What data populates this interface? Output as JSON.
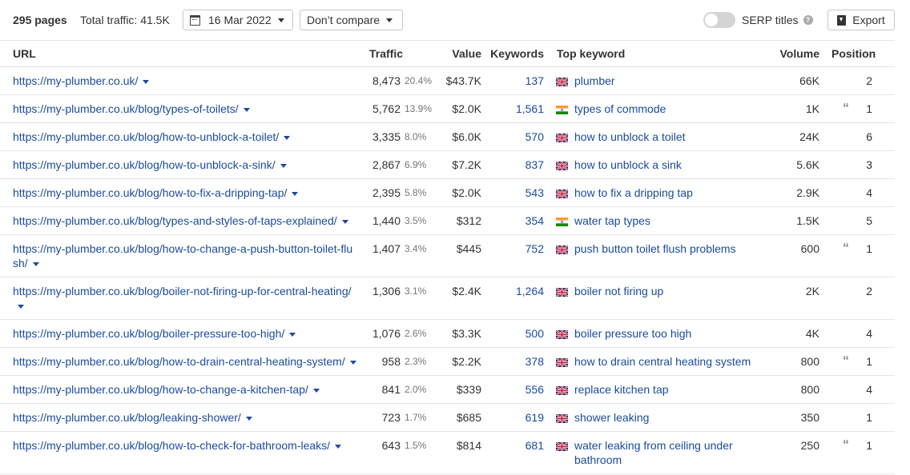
{
  "toolbar": {
    "pages": "295 pages",
    "total_traffic": "Total traffic: 41.5K",
    "date": "16 Mar 2022",
    "compare": "Don’t compare",
    "serp_titles": "SERP titles",
    "export": "Export"
  },
  "columns": {
    "url": "URL",
    "traffic": "Traffic",
    "value": "Value",
    "keywords": "Keywords",
    "top_keyword": "Top keyword",
    "volume": "Volume",
    "position": "Position"
  },
  "rows": [
    {
      "url_line1": "https://my-plumber.co.uk/",
      "url_line2": "",
      "traffic": "8,473",
      "pct": "20.4%",
      "value": "$43.7K",
      "keywords": "137",
      "flag": "uk",
      "kw_line1": "plumber",
      "kw_line2": "",
      "volume": "66K",
      "quote": false,
      "position": "2"
    },
    {
      "url_line1": "https://my-plumber.co.uk/blog/types-of-toilets/",
      "url_line2": "",
      "traffic": "5,762",
      "pct": "13.9%",
      "value": "$2.0K",
      "keywords": "1,561",
      "flag": "in",
      "kw_line1": "types of commode",
      "kw_line2": "",
      "volume": "1K",
      "quote": true,
      "position": "1"
    },
    {
      "url_line1": "https://my-plumber.co.uk/blog/how-to-unblock-a-toilet/",
      "url_line2": "",
      "traffic": "3,335",
      "pct": "8.0%",
      "value": "$6.0K",
      "keywords": "570",
      "flag": "uk",
      "kw_line1": "how to unblock a toilet",
      "kw_line2": "",
      "volume": "24K",
      "quote": false,
      "position": "6"
    },
    {
      "url_line1": "https://my-plumber.co.uk/blog/how-to-unblock-a-sink/",
      "url_line2": "",
      "traffic": "2,867",
      "pct": "6.9%",
      "value": "$7.2K",
      "keywords": "837",
      "flag": "uk",
      "kw_line1": "how to unblock a sink",
      "kw_line2": "",
      "volume": "5.6K",
      "quote": false,
      "position": "3"
    },
    {
      "url_line1": "https://my-plumber.co.uk/blog/how-to-fix-a-dripping-tap/",
      "url_line2": "",
      "traffic": "2,395",
      "pct": "5.8%",
      "value": "$2.0K",
      "keywords": "543",
      "flag": "uk",
      "kw_line1": "how to fix a dripping tap",
      "kw_line2": "",
      "volume": "2.9K",
      "quote": false,
      "position": "4"
    },
    {
      "url_line1": "https://my-plumber.co.uk/blog/types-and-styles-of-taps-explained/",
      "url_line2": "",
      "traffic": "1,440",
      "pct": "3.5%",
      "value": "$312",
      "keywords": "354",
      "flag": "in",
      "kw_line1": "water tap types",
      "kw_line2": "",
      "volume": "1.5K",
      "quote": false,
      "position": "5"
    },
    {
      "url_line1": "https://my-plumber.co.uk/blog/how-to-change-a-push-button-toilet-flu",
      "url_line2": "sh/",
      "traffic": "1,407",
      "pct": "3.4%",
      "value": "$445",
      "keywords": "752",
      "flag": "uk",
      "kw_line1": "push button toilet flush problems",
      "kw_line2": "",
      "volume": "600",
      "quote": true,
      "position": "1"
    },
    {
      "url_line1": "https://my-plumber.co.uk/blog/boiler-not-firing-up-for-central-heating/",
      "url_line2": "",
      "traffic": "1,306",
      "pct": "3.1%",
      "value": "$2.4K",
      "keywords": "1,264",
      "flag": "uk",
      "kw_line1": "boiler not firing up",
      "kw_line2": "",
      "volume": "2K",
      "quote": false,
      "position": "2"
    },
    {
      "url_line1": "https://my-plumber.co.uk/blog/boiler-pressure-too-high/",
      "url_line2": "",
      "traffic": "1,076",
      "pct": "2.6%",
      "value": "$3.3K",
      "keywords": "500",
      "flag": "uk",
      "kw_line1": "boiler pressure too high",
      "kw_line2": "",
      "volume": "4K",
      "quote": false,
      "position": "4"
    },
    {
      "url_line1": "https://my-plumber.co.uk/blog/how-to-drain-central-heating-system/",
      "url_line2": "",
      "traffic": "958",
      "pct": "2.3%",
      "value": "$2.2K",
      "keywords": "378",
      "flag": "uk",
      "kw_line1": "how to drain central heating system",
      "kw_line2": "",
      "volume": "800",
      "quote": true,
      "position": "1"
    },
    {
      "url_line1": "https://my-plumber.co.uk/blog/how-to-change-a-kitchen-tap/",
      "url_line2": "",
      "traffic": "841",
      "pct": "2.0%",
      "value": "$339",
      "keywords": "556",
      "flag": "uk",
      "kw_line1": "replace kitchen tap",
      "kw_line2": "",
      "volume": "800",
      "quote": false,
      "position": "4"
    },
    {
      "url_line1": "https://my-plumber.co.uk/blog/leaking-shower/",
      "url_line2": "",
      "traffic": "723",
      "pct": "1.7%",
      "value": "$685",
      "keywords": "619",
      "flag": "uk",
      "kw_line1": "shower leaking",
      "kw_line2": "",
      "volume": "350",
      "quote": false,
      "position": "1"
    },
    {
      "url_line1": "https://my-plumber.co.uk/blog/how-to-check-for-bathroom-leaks/",
      "url_line2": "",
      "traffic": "643",
      "pct": "1.5%",
      "value": "$814",
      "keywords": "681",
      "flag": "uk",
      "kw_line1": "water leaking from ceiling under",
      "kw_line2": "bathroom",
      "volume": "250",
      "quote": true,
      "position": "1"
    }
  ]
}
